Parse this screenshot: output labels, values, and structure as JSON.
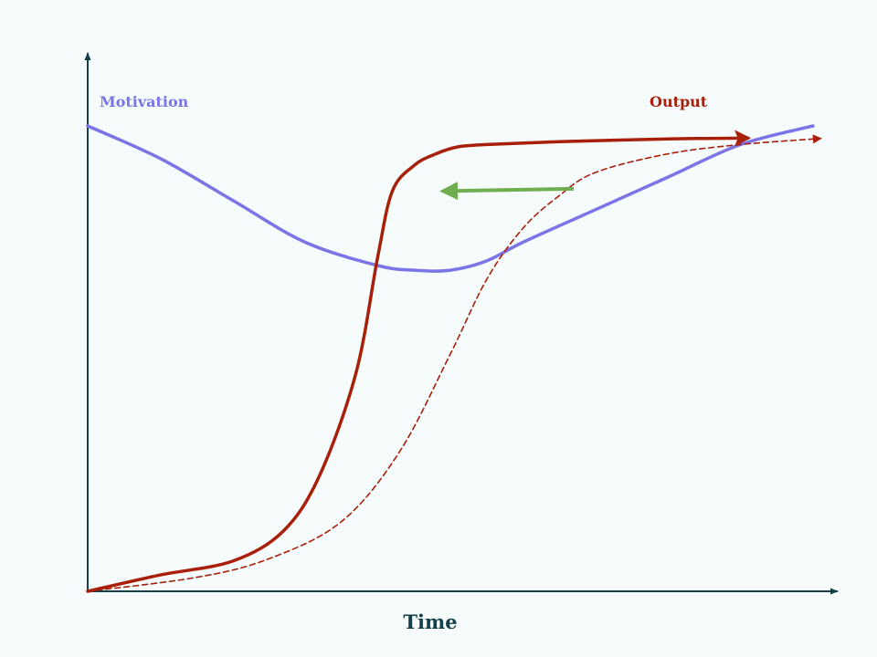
{
  "chart_data": {
    "type": "line",
    "title": "",
    "xlabel": "Time",
    "ylabel": "",
    "xlim": [
      0,
      100
    ],
    "ylim": [
      0,
      100
    ],
    "grid": false,
    "legend": "none",
    "series": [
      {
        "name": "Motivation",
        "style": "solid",
        "color": "#7b73e6",
        "x": [
          0,
          10,
          20,
          30,
          40,
          45,
          50,
          55,
          60,
          70,
          80,
          90,
          100
        ],
        "y": [
          100,
          93,
          84,
          75,
          70,
          69,
          69,
          71,
          75,
          82,
          89,
          96,
          100
        ]
      },
      {
        "name": "Output",
        "style": "solid",
        "color": "#a81f0a",
        "arrow": "end",
        "x": [
          0,
          10,
          20,
          27,
          32,
          37,
          40,
          42,
          45,
          48,
          51,
          55,
          65,
          80,
          91
        ],
        "y": [
          0,
          3.5,
          6.5,
          13,
          25,
          47,
          72,
          86,
          91.5,
          94,
          95.5,
          96,
          96.6,
          97.2,
          97.4
        ]
      },
      {
        "name": "",
        "style": "dashed",
        "color": "#a81f0a",
        "arrow": "end",
        "x": [
          0,
          15,
          25,
          35,
          43,
          50,
          55,
          60,
          65,
          70,
          80,
          90,
          101
        ],
        "y": [
          0,
          3,
          7,
          15,
          30,
          51,
          67,
          78,
          85,
          90,
          94,
          96,
          97.3
        ]
      }
    ],
    "annotations": [
      {
        "type": "arrow",
        "color": "#6fad4f",
        "direction": "left",
        "from": [
          67,
          86.5
        ],
        "to": [
          49,
          86
        ]
      }
    ],
    "series_labels": {
      "motivation": "Motivation",
      "output": "Output"
    }
  }
}
